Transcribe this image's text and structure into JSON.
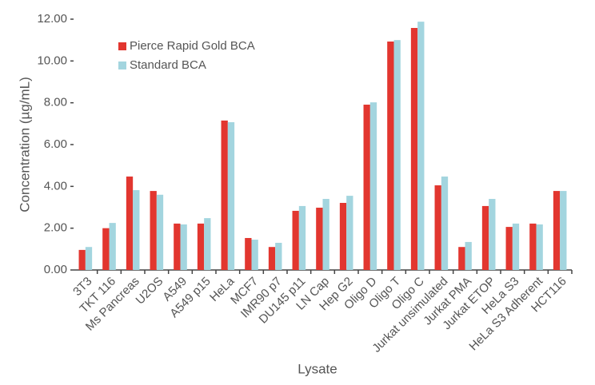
{
  "chart_data": {
    "type": "bar",
    "x_label": "Lysate",
    "y_label": "Concentration (µg/mL)",
    "categories": [
      "3T3",
      "TKT 116",
      "Ms Pancreas",
      "U2OS",
      "A549",
      "A549 p15",
      "HeLa",
      "MCF7",
      "IMR90 p7",
      "DU145 p11",
      "LN Cap",
      "Hep G2",
      "Oligo D",
      "Oligo T",
      "Oligo C",
      "Jurkat unsimulated",
      "Jurkat PMA",
      "Jurkat ETOP",
      "HeLa S3",
      "HeLa S3 Adherent",
      "HCT116"
    ],
    "series": [
      {
        "name": "Pierce Rapid Gold BCA",
        "color": "#e2362f",
        "label_color": "#c4177e",
        "values": [
          0.96,
          2.0,
          4.47,
          3.78,
          2.22,
          2.22,
          7.15,
          1.53,
          1.1,
          2.83,
          2.98,
          3.21,
          7.91,
          10.93,
          11.58,
          4.05,
          1.1,
          3.06,
          2.06,
          2.22,
          3.78
        ]
      },
      {
        "name": "Standard BCA",
        "color": "#a3d5df",
        "label_color": "#555555",
        "values": [
          1.1,
          2.25,
          3.82,
          3.6,
          2.18,
          2.48,
          7.07,
          1.45,
          1.3,
          3.06,
          3.4,
          3.55,
          8.02,
          11.0,
          11.88,
          4.47,
          1.34,
          3.4,
          2.22,
          2.18,
          3.78
        ]
      }
    ],
    "ylim": [
      0,
      12
    ],
    "yticks": [
      {
        "value": 0,
        "label": "0.00"
      },
      {
        "value": 2,
        "label": "2.00"
      },
      {
        "value": 4,
        "label": "4.00"
      },
      {
        "value": 6,
        "label": "6.00"
      },
      {
        "value": 8,
        "label": "8.00"
      },
      {
        "value": 10,
        "label": "10.00"
      },
      {
        "value": 12,
        "label": "12.00"
      }
    ],
    "grid": false
  }
}
